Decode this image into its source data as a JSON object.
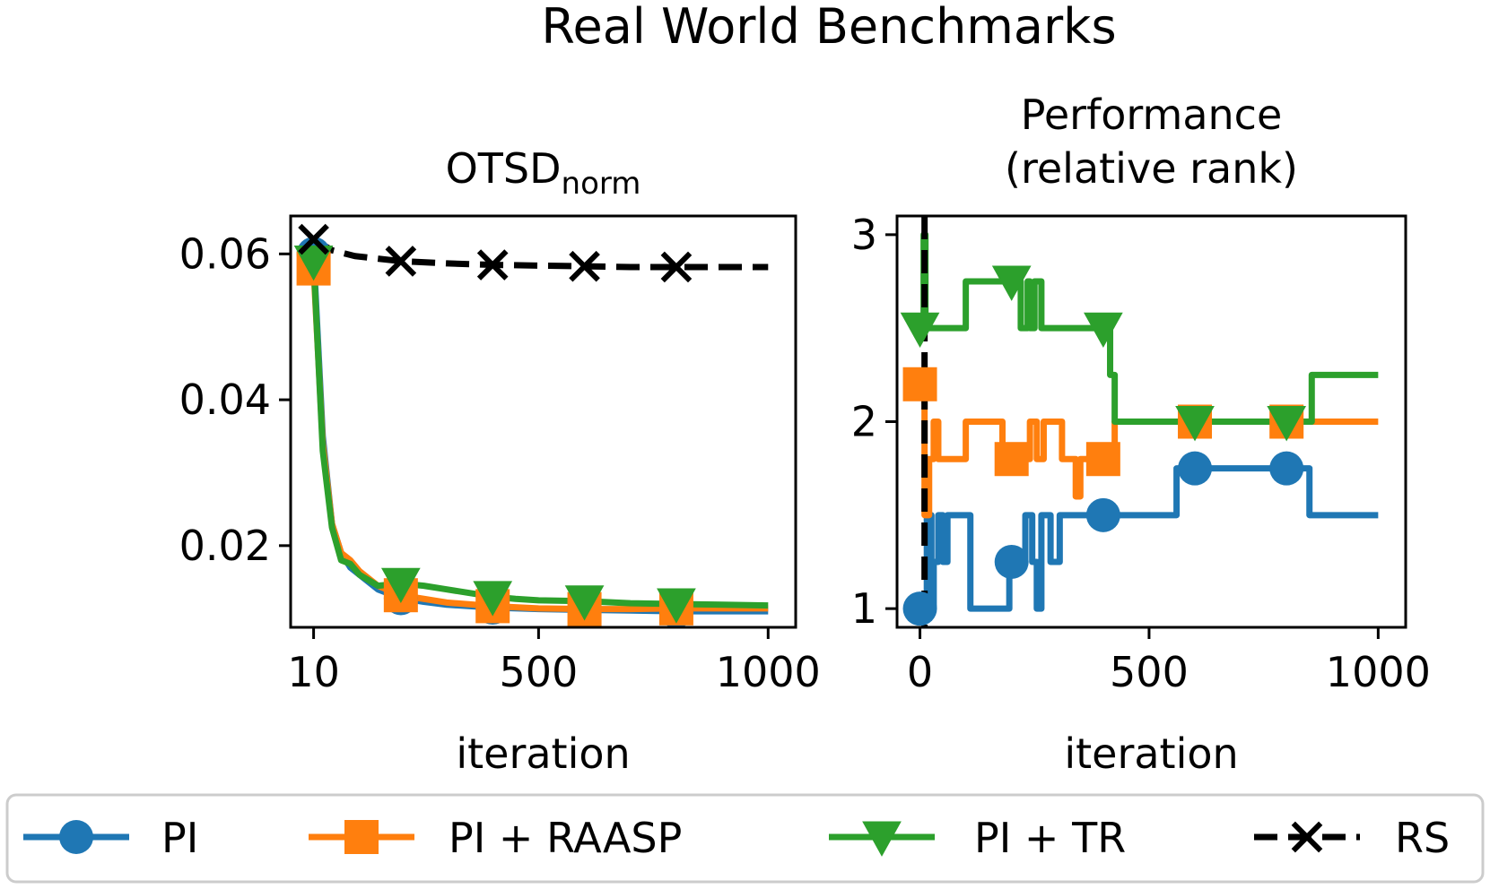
{
  "figure": {
    "title": "Real World Benchmarks"
  },
  "colors": {
    "PI": "#1f77b4",
    "PI + RAASP": "#ff7f0e",
    "PI + TR": "#2ca02c",
    "RS": "#000000"
  },
  "legend": {
    "position": "bottom",
    "entries": [
      {
        "label": "PI",
        "marker": "circle",
        "linestyle": "solid"
      },
      {
        "label": "PI + RAASP",
        "marker": "square",
        "linestyle": "solid"
      },
      {
        "label": "PI + TR",
        "marker": "triangle-down",
        "linestyle": "solid"
      },
      {
        "label": "RS",
        "marker": "x",
        "linestyle": "dashed"
      }
    ]
  },
  "chart_data": [
    {
      "type": "line",
      "title": "OTSD",
      "title_subscript": "norm",
      "xlabel": "iteration",
      "ylabel": "",
      "xlim": [
        -40,
        1060
      ],
      "ylim": [
        0.0088,
        0.0652
      ],
      "xticks": [
        10,
        500,
        1000
      ],
      "xtick_labels": [
        "10",
        "500",
        "1000"
      ],
      "yticks": [
        0.02,
        0.04,
        0.06
      ],
      "ytick_labels": [
        "0.02",
        "0.04",
        "0.06"
      ],
      "series": [
        {
          "name": "PI",
          "x": [
            10,
            30,
            50,
            70,
            90,
            110,
            150,
            200,
            250,
            300,
            400,
            500,
            600,
            700,
            800,
            900,
            1000
          ],
          "y": [
            0.06,
            0.035,
            0.023,
            0.019,
            0.017,
            0.016,
            0.014,
            0.0128,
            0.0123,
            0.0119,
            0.0115,
            0.0113,
            0.0112,
            0.0111,
            0.011,
            0.011,
            0.011
          ],
          "marker_x": [
            10,
            200,
            400,
            600,
            800
          ]
        },
        {
          "name": "PI + RAASP",
          "x": [
            10,
            30,
            50,
            70,
            90,
            110,
            150,
            200,
            250,
            300,
            400,
            500,
            600,
            700,
            800,
            900,
            1000
          ],
          "y": [
            0.058,
            0.034,
            0.023,
            0.019,
            0.018,
            0.0165,
            0.0145,
            0.0132,
            0.0127,
            0.0122,
            0.0117,
            0.0114,
            0.0113,
            0.0113,
            0.0114,
            0.0114,
            0.0114
          ],
          "marker_x": [
            10,
            200,
            400,
            600,
            800
          ]
        },
        {
          "name": "PI + TR",
          "x": [
            10,
            30,
            50,
            70,
            90,
            110,
            150,
            200,
            250,
            300,
            400,
            450,
            500,
            600,
            700,
            800,
            900,
            1000
          ],
          "y": [
            0.059,
            0.033,
            0.0225,
            0.018,
            0.0175,
            0.016,
            0.0145,
            0.0148,
            0.0145,
            0.014,
            0.013,
            0.0127,
            0.0125,
            0.0124,
            0.0121,
            0.012,
            0.0119,
            0.0118
          ],
          "marker_x": [
            10,
            200,
            400,
            600,
            800
          ]
        },
        {
          "name": "RS",
          "x": [
            10,
            50,
            100,
            200,
            300,
            400,
            500,
            600,
            700,
            800,
            900,
            1000
          ],
          "y": [
            0.062,
            0.0605,
            0.0597,
            0.059,
            0.0587,
            0.0585,
            0.0584,
            0.0583,
            0.0582,
            0.0582,
            0.0582,
            0.0582
          ],
          "marker_x": [
            10,
            200,
            400,
            600,
            800
          ]
        }
      ]
    },
    {
      "type": "line",
      "title": "Performance\n(relative rank)",
      "xlabel": "iteration",
      "ylabel": "",
      "xlim": [
        -50,
        1060
      ],
      "ylim": [
        0.9,
        3.1
      ],
      "xticks": [
        0,
        500,
        1000
      ],
      "xtick_labels": [
        "0",
        "500",
        "1000"
      ],
      "yticks": [
        1,
        2,
        3
      ],
      "ytick_labels": [
        "1",
        "2",
        "3"
      ],
      "series": [
        {
          "name": "PI",
          "steps": true,
          "x": [
            0,
            15,
            25,
            30,
            40,
            50,
            60,
            65,
            110,
            175,
            195,
            230,
            245,
            255,
            265,
            285,
            305,
            335,
            355,
            420,
            560,
            575,
            850,
            1000
          ],
          "y": [
            1,
            1.5,
            1,
            1.25,
            1.5,
            1.25,
            1.5,
            1.5,
            1,
            1,
            1.25,
            1.5,
            1.25,
            1,
            1.5,
            1.25,
            1.5,
            1.5,
            1.5,
            1.5,
            1.75,
            1.75,
            1.5,
            1.5
          ],
          "marker_x": [
            0,
            200,
            400,
            600,
            800
          ]
        },
        {
          "name": "PI + RAASP",
          "steps": true,
          "x": [
            0,
            10,
            20,
            30,
            40,
            60,
            100,
            170,
            180,
            240,
            255,
            270,
            310,
            340,
            350,
            360,
            390,
            425,
            560,
            850,
            1000
          ],
          "y": [
            2.2,
            1.5,
            1.8,
            2,
            1.8,
            1.8,
            2,
            2,
            1.8,
            2,
            1.8,
            2,
            1.8,
            1.6,
            1.8,
            1.8,
            1.8,
            2,
            2,
            2,
            2
          ],
          "marker_x": [
            0,
            200,
            400,
            600,
            800
          ]
        },
        {
          "name": "PI + TR",
          "steps": true,
          "x": [
            0,
            8,
            12,
            22,
            100,
            165,
            220,
            235,
            240,
            250,
            265,
            300,
            350,
            415,
            425,
            565,
            855,
            1000
          ],
          "y": [
            2.5,
            3,
            2.5,
            2.5,
            2.75,
            2.75,
            2.5,
            2.75,
            2.5,
            2.75,
            2.5,
            2.5,
            2.5,
            2.25,
            2,
            2,
            2.25,
            2.25
          ],
          "marker_x": [
            0,
            200,
            400,
            600,
            800
          ]
        },
        {
          "name": "RS",
          "vertical_at_x": 10,
          "linestyle": "dashed"
        }
      ]
    }
  ]
}
